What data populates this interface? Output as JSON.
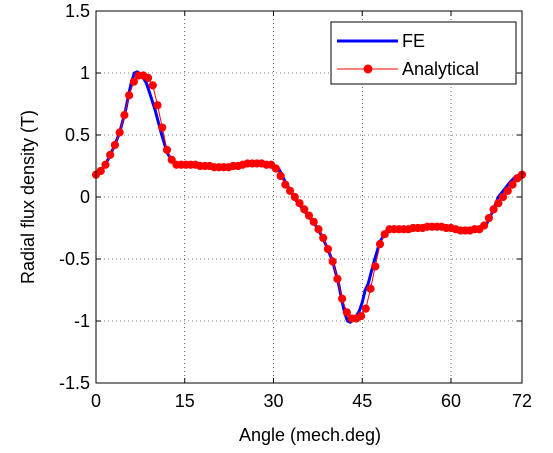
{
  "chart_data": {
    "type": "line",
    "xlabel": "Angle (mech.deg)",
    "ylabel": "Radial flux density (T)",
    "xlim": [
      0,
      72
    ],
    "ylim": [
      -1.5,
      1.5
    ],
    "xticks": [
      0,
      15,
      30,
      45,
      60,
      72
    ],
    "xtick_labels": [
      "0",
      "15",
      "30",
      "45",
      "60",
      "72"
    ],
    "yticks": [
      -1.5,
      -1,
      -0.5,
      0,
      0.5,
      1,
      1.5
    ],
    "ytick_labels": [
      "-1.5",
      "-1",
      "-0.5",
      "0",
      "0.5",
      "1",
      "1.5"
    ],
    "grid": true,
    "legend_position": "top-right",
    "series": [
      {
        "name": "FE",
        "color": "#0000ff",
        "style": "solid-line",
        "x": [
          0,
          1,
          2,
          3,
          4,
          5,
          5.5,
          6,
          6.5,
          7,
          7.5,
          8,
          8.5,
          9,
          10,
          11,
          12,
          13,
          14,
          15,
          17,
          19,
          21,
          23,
          25,
          26,
          27,
          28,
          29,
          30,
          31,
          32,
          33,
          34,
          35,
          36,
          37,
          38,
          39,
          40,
          41,
          41.5,
          42,
          42.5,
          43,
          43.5,
          44,
          44.5,
          45,
          45.5,
          46,
          47,
          48,
          49,
          50,
          51,
          53,
          55,
          57,
          59,
          61,
          63,
          65,
          66,
          67,
          68,
          69,
          70,
          71,
          72
        ],
        "y": [
          0.18,
          0.22,
          0.3,
          0.4,
          0.52,
          0.7,
          0.82,
          0.93,
          1.0,
          1.01,
          0.99,
          0.96,
          0.92,
          0.85,
          0.7,
          0.52,
          0.36,
          0.28,
          0.26,
          0.26,
          0.26,
          0.25,
          0.24,
          0.25,
          0.27,
          0.27,
          0.27,
          0.27,
          0.26,
          0.26,
          0.22,
          0.12,
          0.04,
          -0.04,
          -0.1,
          -0.16,
          -0.22,
          -0.3,
          -0.4,
          -0.52,
          -0.7,
          -0.82,
          -0.93,
          -1.0,
          -1.01,
          -0.99,
          -0.96,
          -0.92,
          -0.85,
          -0.75,
          -0.7,
          -0.52,
          -0.36,
          -0.28,
          -0.26,
          -0.26,
          -0.26,
          -0.25,
          -0.24,
          -0.25,
          -0.27,
          -0.27,
          -0.26,
          -0.22,
          -0.12,
          0.0,
          0.06,
          0.12,
          0.17,
          0.18
        ]
      },
      {
        "name": "Analytical",
        "color": "#ff0000",
        "style": "line-with-markers",
        "x": [
          0,
          0.8,
          1.6,
          2.4,
          3.2,
          4.0,
          4.8,
          5.6,
          6.4,
          7.2,
          8.0,
          8.8,
          9.6,
          10.4,
          11.2,
          12.0,
          12.8,
          13.6,
          14.4,
          15.2,
          16.0,
          16.8,
          17.6,
          18.4,
          19.2,
          20.0,
          20.8,
          21.6,
          22.4,
          23.2,
          24.0,
          24.8,
          25.6,
          26.4,
          27.2,
          28.0,
          28.8,
          29.6,
          30.4,
          31.2,
          32.0,
          32.8,
          33.6,
          34.4,
          35.2,
          36.0,
          36.8,
          37.6,
          38.4,
          39.2,
          40.0,
          40.8,
          41.6,
          42.4,
          43.2,
          44.0,
          44.8,
          45.6,
          46.4,
          47.2,
          48.0,
          48.8,
          49.6,
          50.4,
          51.2,
          52.0,
          52.8,
          53.6,
          54.4,
          55.2,
          56.0,
          56.8,
          57.6,
          58.4,
          59.2,
          60.0,
          60.8,
          61.6,
          62.4,
          63.2,
          64.0,
          64.8,
          65.6,
          66.4,
          67.2,
          68.0,
          68.8,
          69.6,
          70.4,
          71.2,
          72.0
        ],
        "y": [
          0.18,
          0.21,
          0.26,
          0.34,
          0.42,
          0.52,
          0.66,
          0.82,
          0.93,
          0.98,
          0.98,
          0.96,
          0.9,
          0.74,
          0.56,
          0.38,
          0.3,
          0.26,
          0.26,
          0.26,
          0.26,
          0.26,
          0.25,
          0.25,
          0.25,
          0.24,
          0.24,
          0.24,
          0.24,
          0.25,
          0.25,
          0.26,
          0.27,
          0.27,
          0.27,
          0.27,
          0.26,
          0.26,
          0.23,
          0.17,
          0.1,
          0.05,
          0.0,
          -0.05,
          -0.1,
          -0.15,
          -0.2,
          -0.26,
          -0.33,
          -0.42,
          -0.52,
          -0.66,
          -0.82,
          -0.93,
          -0.98,
          -0.98,
          -0.96,
          -0.9,
          -0.74,
          -0.56,
          -0.38,
          -0.3,
          -0.26,
          -0.26,
          -0.26,
          -0.26,
          -0.26,
          -0.25,
          -0.25,
          -0.25,
          -0.24,
          -0.24,
          -0.24,
          -0.24,
          -0.25,
          -0.25,
          -0.26,
          -0.27,
          -0.27,
          -0.27,
          -0.26,
          -0.26,
          -0.23,
          -0.17,
          -0.1,
          -0.05,
          0.0,
          0.05,
          0.1,
          0.15,
          0.18
        ]
      }
    ]
  }
}
